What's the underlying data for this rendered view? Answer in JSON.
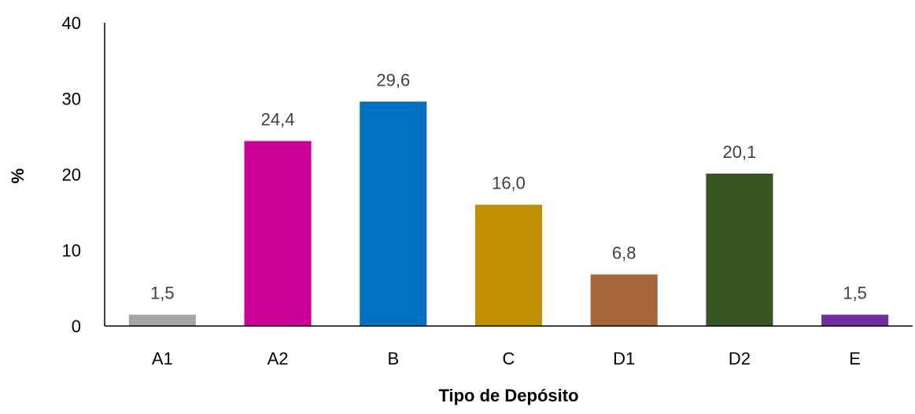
{
  "chart_data": {
    "type": "bar",
    "title": "",
    "xlabel": "Tipo de Depósito",
    "ylabel": "%",
    "ylim": [
      0,
      40
    ],
    "yticks": [
      0,
      10,
      20,
      30,
      40
    ],
    "grid": false,
    "legend": "none",
    "categories": [
      "A1",
      "A2",
      "B",
      "C",
      "D1",
      "D2",
      "E"
    ],
    "values": [
      1.5,
      24.4,
      29.6,
      16.0,
      6.8,
      20.1,
      1.5
    ],
    "value_labels": [
      "1,5",
      "24,4",
      "29,6",
      "16,0",
      "6,8",
      "20,1",
      "1,5"
    ],
    "colors": [
      "#a5a5a5",
      "#cc0099",
      "#0070c0",
      "#bf9000",
      "#a5673a",
      "#375623",
      "#7030a0"
    ],
    "axis_color": "#000000",
    "label_color": "#404040"
  }
}
